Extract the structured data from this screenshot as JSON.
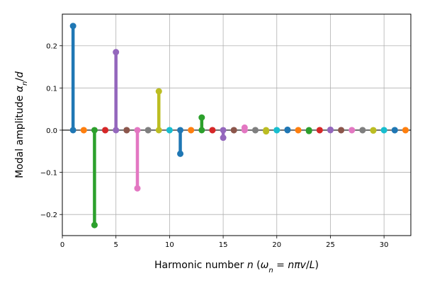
{
  "chart_data": {
    "type": "stem",
    "title": "",
    "xlabel": "Harmonic number n (ω_n = nπv/L)",
    "ylabel": "Modal amplitude α_n/d",
    "xlim": [
      0,
      32.5
    ],
    "ylim": [
      -0.25,
      0.275
    ],
    "xticks": [
      0,
      5,
      10,
      15,
      20,
      25,
      30
    ],
    "yticks": [
      -0.2,
      -0.1,
      0.0,
      0.1,
      0.2
    ],
    "ytick_labels": [
      "−0.2",
      "−0.1",
      "0.0",
      "0.1",
      "0.2"
    ],
    "grid": true,
    "baseline": 0,
    "palette": [
      "#1f77b4",
      "#ff7f0e",
      "#2ca02c",
      "#d62728",
      "#9467bd",
      "#8c564b",
      "#e377c2",
      "#7f7f7f",
      "#bcbd22",
      "#17becf"
    ],
    "x": [
      1,
      2,
      3,
      4,
      5,
      6,
      7,
      8,
      9,
      10,
      11,
      12,
      13,
      14,
      15,
      16,
      17,
      18,
      19,
      20,
      21,
      22,
      23,
      24,
      25,
      26,
      27,
      28,
      29,
      30,
      31,
      32
    ],
    "values": [
      0.247,
      0.0,
      -0.225,
      0.0,
      0.185,
      0.0,
      -0.138,
      0.0,
      0.092,
      0.0,
      -0.056,
      0.0,
      0.03,
      0.0,
      -0.018,
      0.0,
      0.006,
      0.0,
      -0.003,
      0.0,
      0.001,
      0.0,
      -0.002,
      0.0,
      0.001,
      0.0,
      0.0,
      0.0,
      -0.001,
      0.0,
      0.0,
      0.0
    ]
  }
}
